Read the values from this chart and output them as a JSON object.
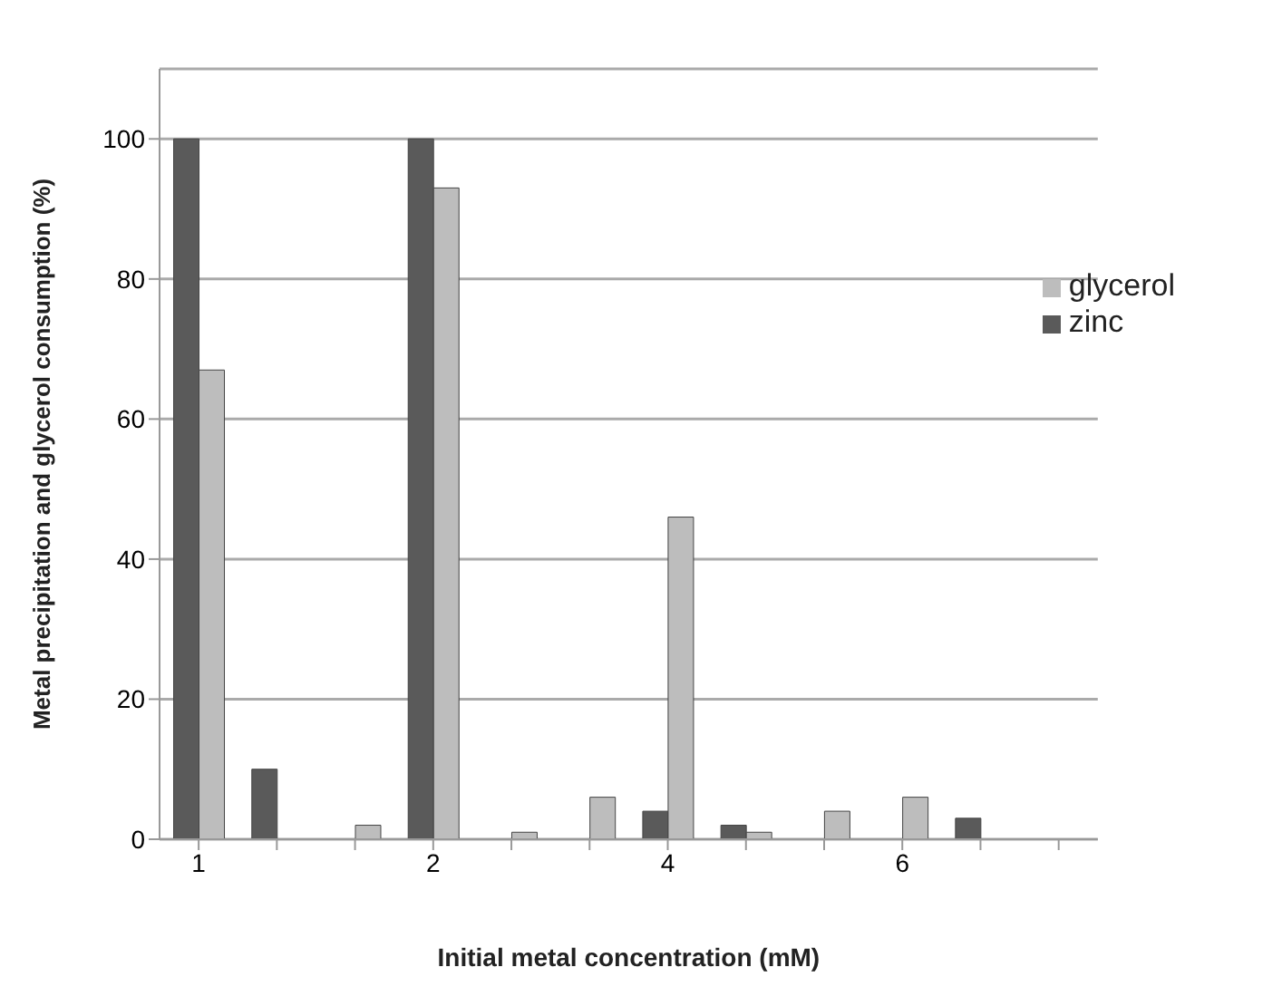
{
  "chart_data": {
    "type": "bar",
    "xlabel": "Initial metal concentration (mM)",
    "ylabel": "Metal precipitation and glycerol consumption (%)",
    "categories": [
      "1",
      null,
      null,
      "2",
      null,
      null,
      "4",
      null,
      null,
      "6",
      null,
      null
    ],
    "series": [
      {
        "name": "zinc",
        "color": "#5a5a5a",
        "values": [
          100,
          10,
          0,
          100,
          0,
          0,
          4,
          2,
          0,
          0,
          3,
          0
        ]
      },
      {
        "name": "glycerol",
        "color": "#bdbdbd",
        "values": [
          67,
          0,
          2,
          93,
          1,
          6,
          46,
          1,
          4,
          6,
          0,
          0
        ]
      }
    ],
    "ylim": [
      0,
      110
    ],
    "yticks": [
      0,
      20,
      40,
      60,
      80,
      100
    ],
    "grid": "y",
    "legend": "right"
  }
}
